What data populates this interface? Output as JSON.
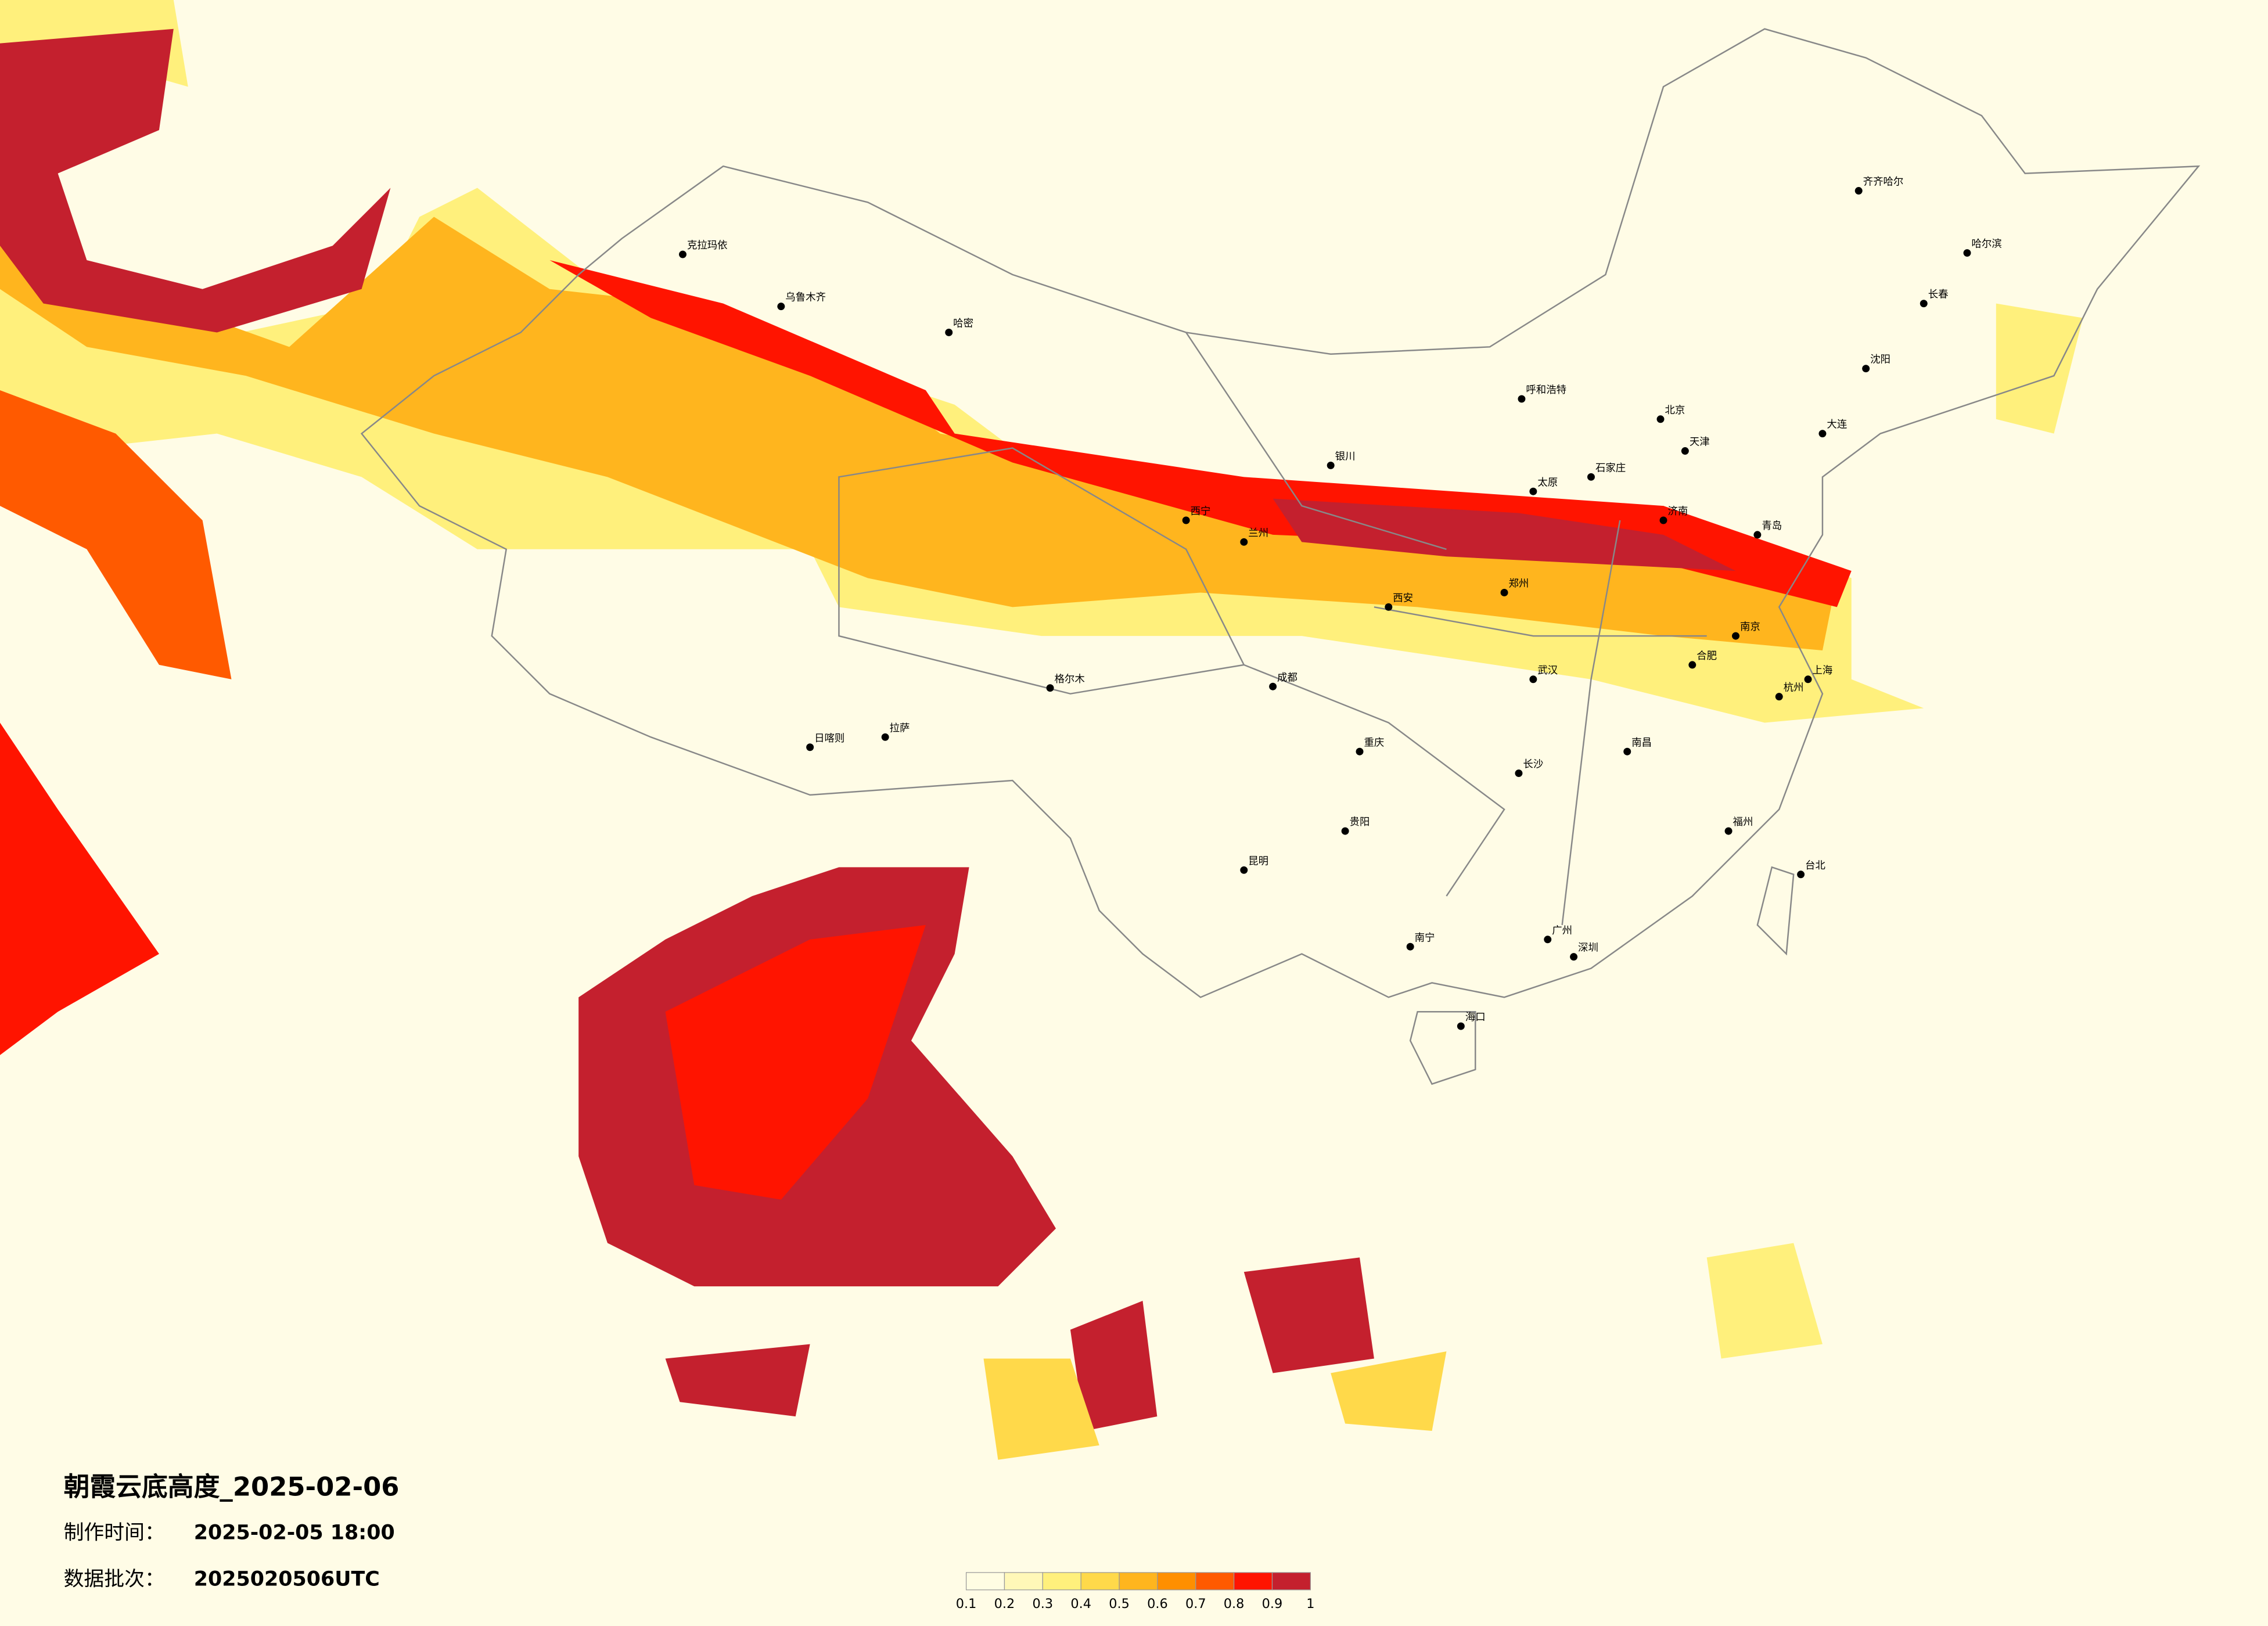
{
  "header": {
    "title": "朝霞云底高度_2025-02-06"
  },
  "info": {
    "made_label": "制作时间：",
    "made_value": "2025-02-05 18:00",
    "batch_label": "数据批次：",
    "batch_value": "2025020506UTC"
  },
  "legend": {
    "ticks": [
      0.1,
      0.2,
      0.3,
      0.4,
      0.5,
      0.6,
      0.7,
      0.8,
      0.9,
      1
    ],
    "colors": [
      "#fffde3",
      "#fff8b8",
      "#fff07c",
      "#ffd94a",
      "#ffb51e",
      "#ff8f00",
      "#ff5a00",
      "#ff1400",
      "#c4202e"
    ]
  },
  "cities": [
    "北京",
    "天津",
    "上海",
    "广州",
    "深圳",
    "重庆",
    "成都",
    "武汉",
    "西安",
    "郑州",
    "南京",
    "杭州",
    "长沙",
    "昆明",
    "贵阳",
    "南宁",
    "海口",
    "兰州",
    "西宁",
    "银川",
    "呼和浩特",
    "哈尔滨",
    "长春",
    "沈阳",
    "乌鲁木齐",
    "拉萨",
    "台北",
    "南昌",
    "福州",
    "济南",
    "太原",
    "石家庄",
    "合肥",
    "克拉玛依",
    "哈密",
    "格尔木",
    "日喀则",
    "齐齐哈尔",
    "大连",
    "青岛"
  ]
}
